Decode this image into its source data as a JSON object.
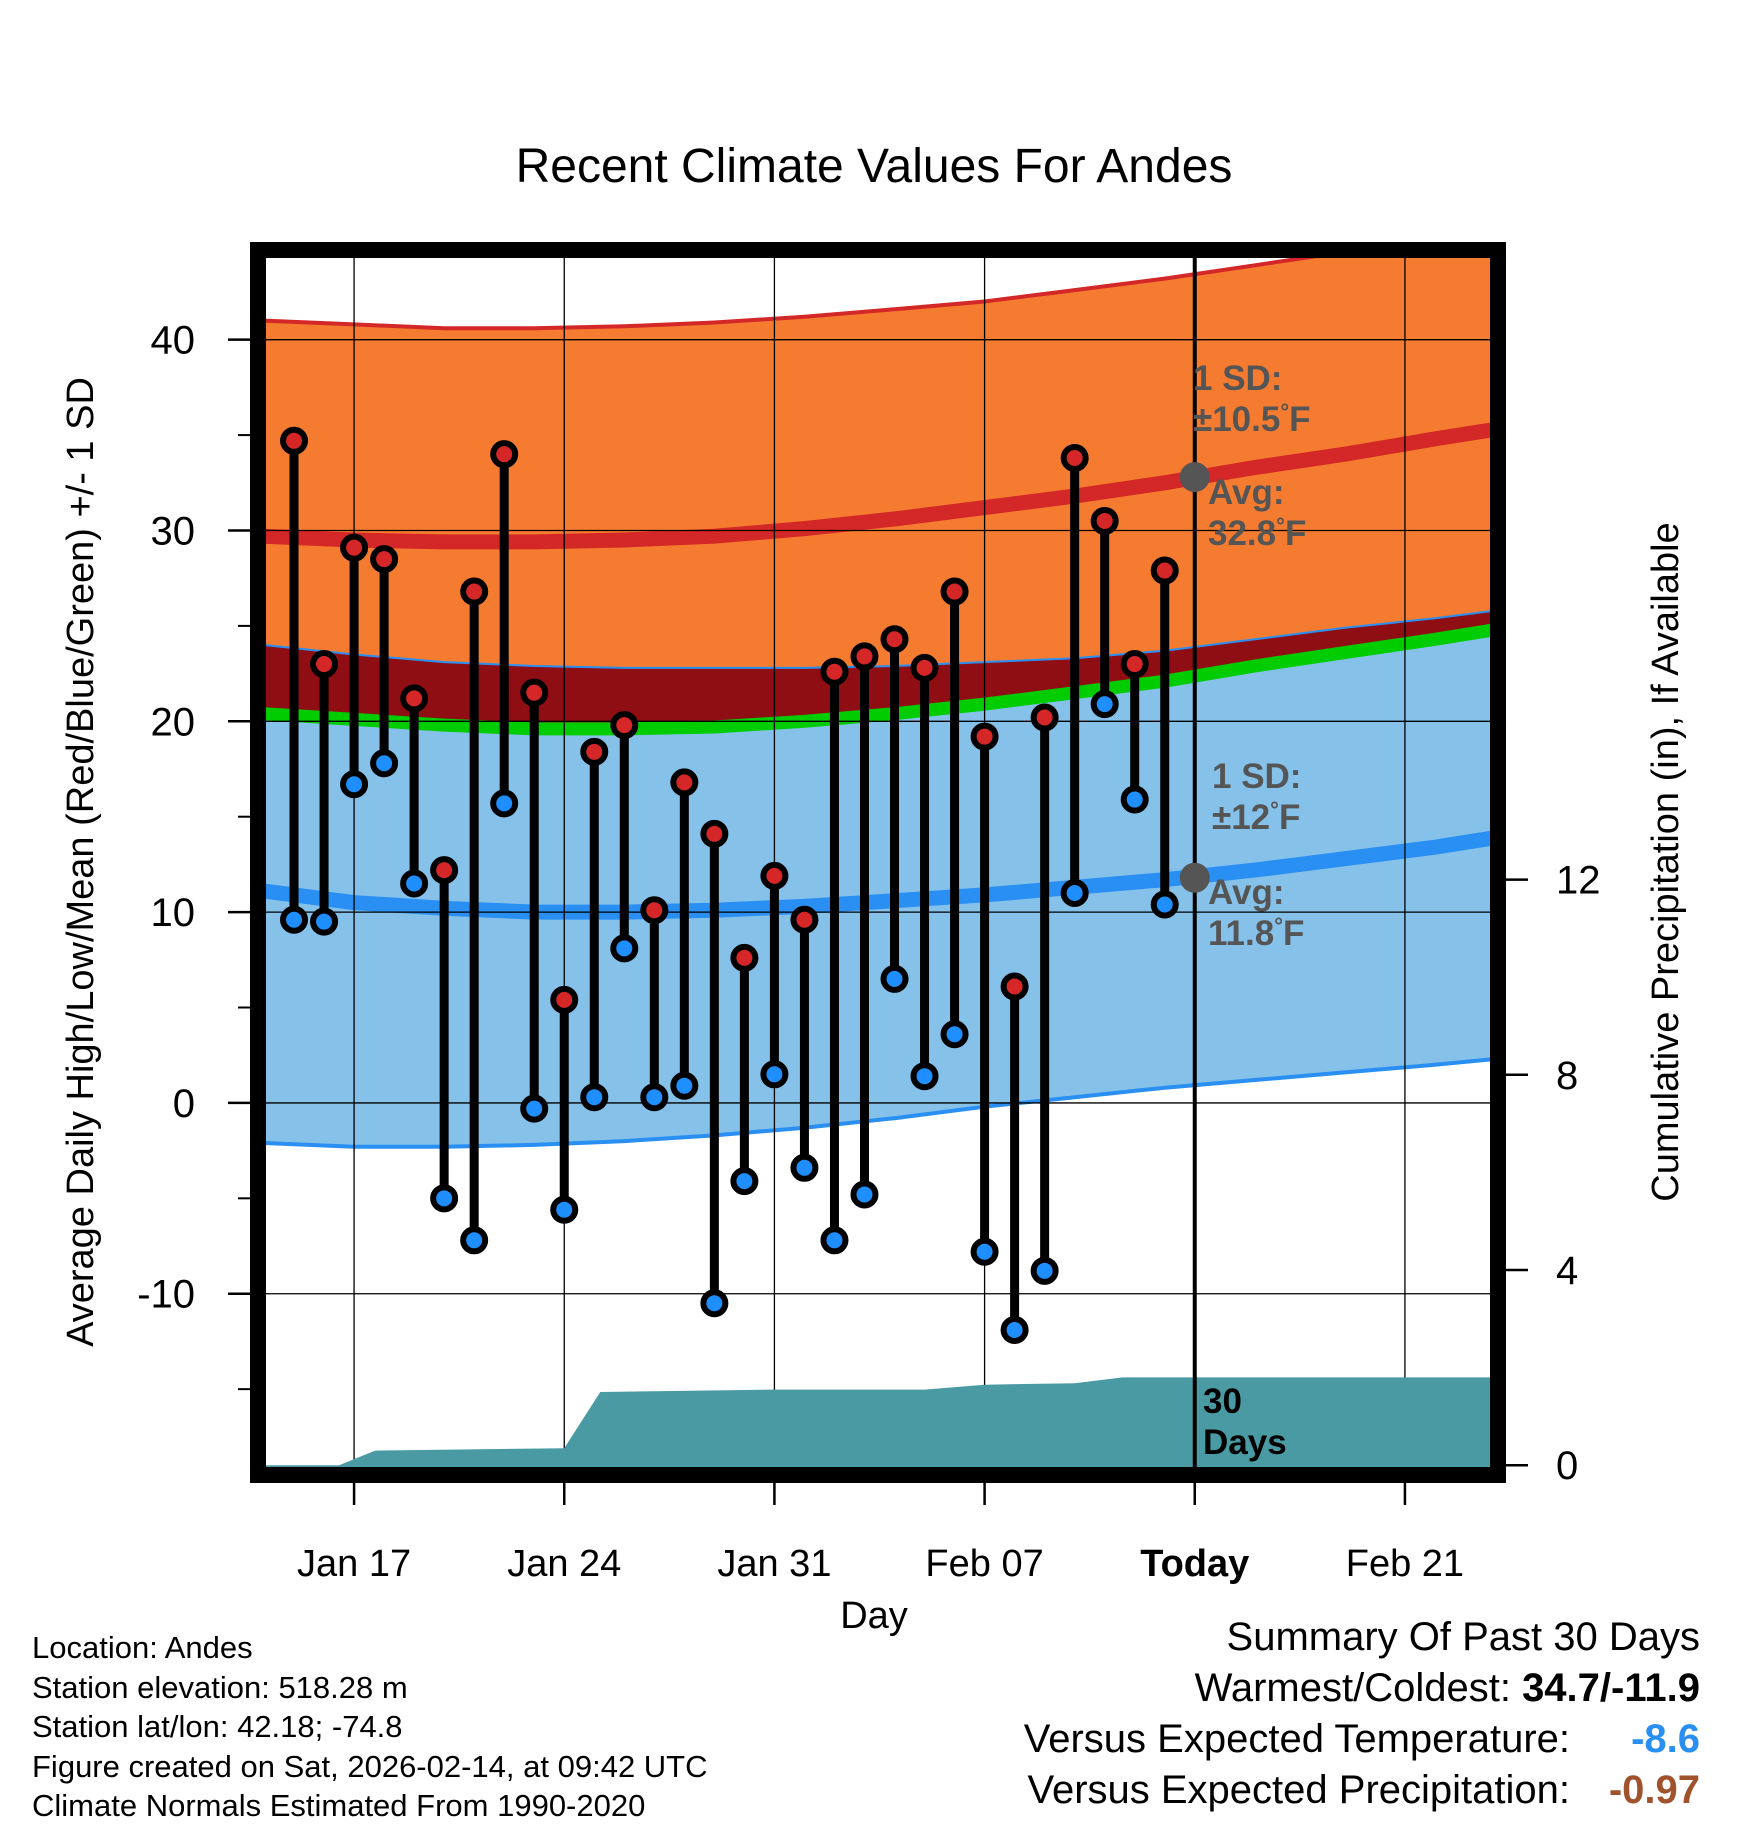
{
  "colors": {
    "record_high_band": "#f47b2f",
    "normal_band_upper": "#8e0e14",
    "mean_line": "#00cc00",
    "normal_band_lower": "#85c1e9",
    "avg_high_line": "#d42727",
    "avg_low_line": "#2a8ff2",
    "precip_fill": "#4a9aa4",
    "high_marker": "#d62728",
    "low_marker": "#1f8fff",
    "annotation_gray": "#555555",
    "temp_diff": "#2a8ff2",
    "precip_diff": "#a0522d"
  },
  "chart_data": {
    "type": "line",
    "title": "Recent Climate Values For Andes",
    "xlabel": "Day",
    "ylabel": "Average Daily High/Low/Mean (Red/Blue/Green) +/- 1 SD",
    "ylabel_right": "Cumulative Precipitation (in), If Available",
    "xlim": [
      -3.2,
      38.1
    ],
    "ylim": [
      -19.5,
      44.7
    ],
    "ylim_right": [
      -0.2,
      24.9
    ],
    "x_ticks": [
      {
        "x": 0,
        "label": "Jan 17"
      },
      {
        "x": 7,
        "label": "Jan 24"
      },
      {
        "x": 14,
        "label": "Jan 31"
      },
      {
        "x": 21,
        "label": "Feb 07"
      },
      {
        "x": 28,
        "label": "Today"
      },
      {
        "x": 35,
        "label": "Feb 21"
      }
    ],
    "y_ticks": [
      {
        "y": -10,
        "label": "-10"
      },
      {
        "y": 0,
        "label": "0"
      },
      {
        "y": 10,
        "label": "10"
      },
      {
        "y": 20,
        "label": "20"
      },
      {
        "y": 30,
        "label": "30"
      },
      {
        "y": 40,
        "label": "40"
      }
    ],
    "y_ticks_right": [
      {
        "y": 0,
        "label": "0"
      },
      {
        "y": 4,
        "label": "4"
      },
      {
        "y": 8,
        "label": "8"
      },
      {
        "y": 12,
        "label": "12"
      }
    ],
    "daily_high": [
      34.7,
      23.0,
      29.1,
      28.5,
      21.2,
      12.2,
      26.8,
      34.0,
      21.5,
      5.4,
      18.4,
      19.8,
      10.1,
      16.8,
      14.1,
      7.6,
      11.9,
      9.6,
      22.6,
      23.4,
      24.3,
      22.8,
      26.8,
      19.2,
      6.1,
      20.2,
      33.8,
      30.5,
      23.0,
      27.9
    ],
    "daily_low": [
      9.6,
      9.5,
      16.7,
      17.8,
      11.5,
      -5.0,
      -7.2,
      15.7,
      -0.3,
      -5.6,
      0.3,
      8.1,
      0.3,
      0.9,
      -10.5,
      -4.1,
      1.5,
      -3.4,
      -7.2,
      -4.8,
      6.5,
      1.4,
      3.6,
      -7.8,
      -11.9,
      -8.8,
      11.0,
      20.9,
      15.9,
      10.4
    ],
    "normals": {
      "x": [
        -3,
        0,
        3,
        6,
        9,
        12,
        15,
        18,
        21,
        24,
        27,
        30,
        33,
        36,
        38
      ],
      "avg_high": [
        29.7,
        29.5,
        29.4,
        29.4,
        29.5,
        29.7,
        30.1,
        30.6,
        31.2,
        31.8,
        32.5,
        33.3,
        34.0,
        34.8,
        35.3
      ],
      "avg_low": [
        11.1,
        10.5,
        10.2,
        10.0,
        10.0,
        10.1,
        10.3,
        10.6,
        10.9,
        11.3,
        11.7,
        12.2,
        12.8,
        13.4,
        13.9
      ],
      "avg_mean": [
        20.4,
        20.1,
        19.8,
        19.6,
        19.6,
        19.7,
        20.0,
        20.4,
        20.9,
        21.5,
        22.1,
        22.9,
        23.6,
        24.3,
        24.8
      ],
      "high_plus_sd": [
        41.0,
        40.8,
        40.6,
        40.6,
        40.7,
        40.9,
        41.2,
        41.6,
        42.0,
        42.6,
        43.2,
        43.9,
        44.6,
        45.2,
        45.6
      ],
      "low_plus_sd": [
        24.0,
        23.5,
        23.1,
        22.9,
        22.8,
        22.8,
        22.8,
        22.9,
        23.1,
        23.3,
        23.7,
        24.3,
        24.9,
        25.4,
        25.8
      ],
      "low_minus_sd": [
        -2.1,
        -2.3,
        -2.3,
        -2.2,
        -2.0,
        -1.7,
        -1.3,
        -0.8,
        -0.2,
        0.3,
        0.8,
        1.2,
        1.6,
        2.0,
        2.3
      ]
    },
    "precip_cumulative": {
      "x": [
        -3,
        -0.5,
        0.7,
        7,
        8.2,
        14,
        19,
        21,
        24,
        25.6,
        38
      ],
      "y": [
        0,
        0,
        0.3,
        0.35,
        1.5,
        1.55,
        1.55,
        1.65,
        1.68,
        1.8,
        1.8
      ]
    },
    "annotations": {
      "high_sd_line1": "1 SD:",
      "high_sd_line2": "±10.5",
      "high_sd_unit": "°F",
      "high_avg_line1": "Avg:",
      "high_avg_line2": "32.8",
      "high_avg_unit": "°F",
      "low_sd_line1": "1 SD:",
      "low_sd_line2": "±12",
      "low_sd_unit": "°F",
      "low_avg_line1": "Avg:",
      "low_avg_line2": "11.8",
      "low_avg_unit": "°F",
      "days_line1": "30",
      "days_line2": "Days"
    }
  },
  "footer": {
    "location": "Location: Andes",
    "elevation": "Station elevation: 518.28 m",
    "latlon": "Station lat/lon: 42.18; -74.8",
    "created": "Figure created on Sat, 2026-02-14, at 09:42 UTC",
    "normals": "Climate Normals Estimated From 1990-2020"
  },
  "summary": {
    "title": "Summary Of Past 30 Days",
    "warm_cold_label": "Warmest/Coldest: ",
    "warm_cold_value": "34.7/-11.9",
    "temp_label": "Versus Expected Temperature:",
    "temp_value": "-8.6",
    "precip_label": "Versus Expected Precipitation:",
    "precip_value": "-0.97"
  }
}
